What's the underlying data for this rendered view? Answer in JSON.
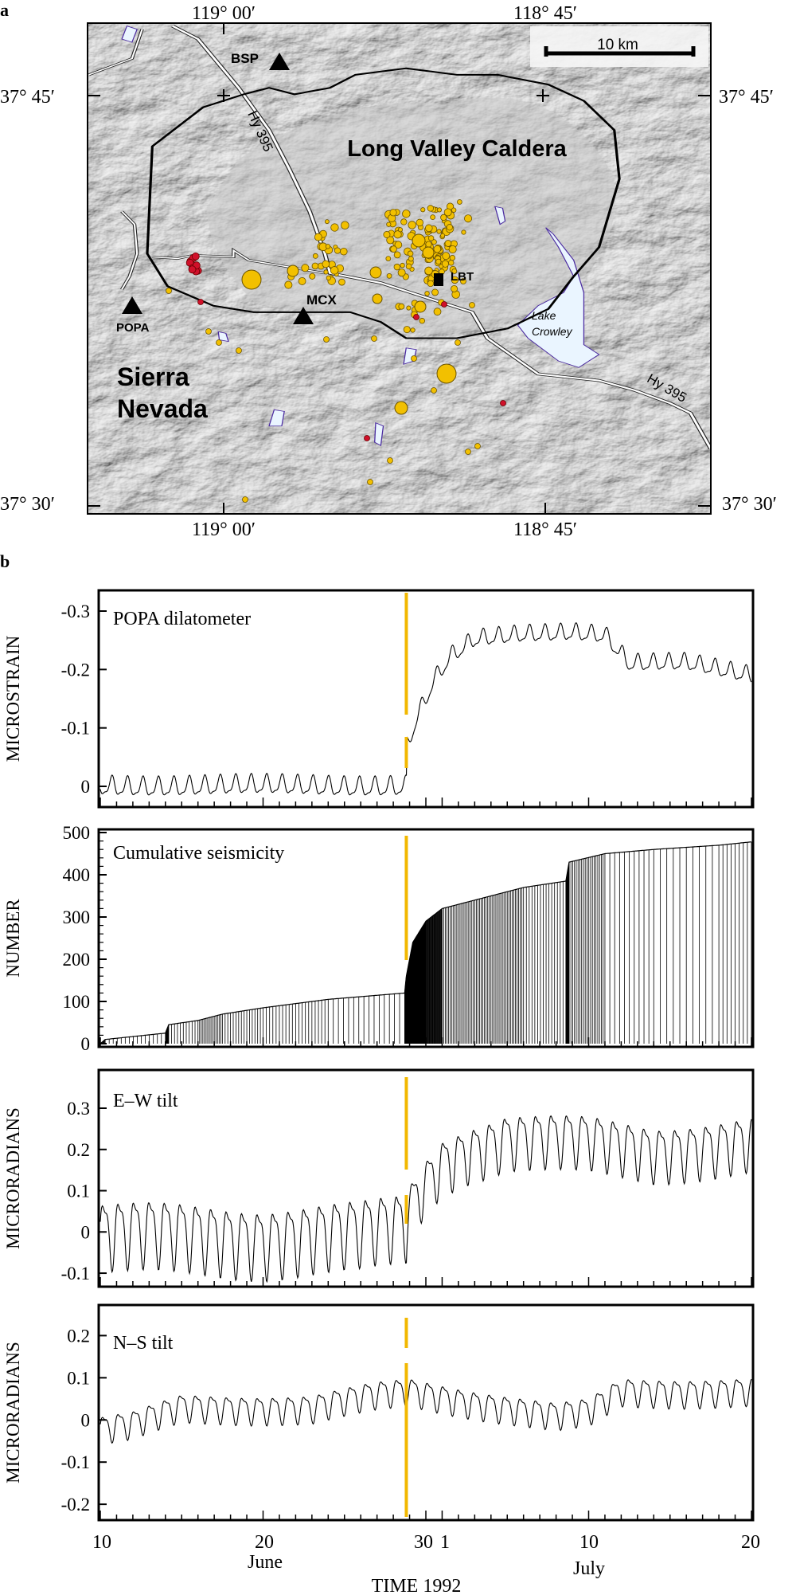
{
  "panel_a": {
    "label": "a",
    "lon_labels": [
      "119° 00′",
      "118° 45′"
    ],
    "lat_labels": [
      "37° 45′",
      "37° 30′"
    ],
    "scale_bar": "10 km",
    "title": "Long Valley Caldera",
    "region": [
      "Sierra",
      "Nevada"
    ],
    "lake": [
      "Lake",
      "Crowley"
    ],
    "highway": "Hy 395",
    "stations": [
      "BSP",
      "MCX",
      "POPA",
      "LBT"
    ],
    "colors": {
      "earthquake": "#f2c000",
      "earthquake_red": "#d0102a",
      "lake": "#e8f4ff",
      "lake_edge": "#4a2aa0"
    }
  },
  "panel_b": {
    "label": "b",
    "xlabel": "TIME 1992",
    "x_tick_labels": [
      "10",
      "20",
      "30",
      "1",
      "10",
      "20"
    ],
    "month_labels": [
      "June",
      "July"
    ],
    "event_marker_color": "#f2b800"
  },
  "chart_data": [
    {
      "type": "line",
      "title": "POPA dilatometer",
      "ylabel": "MICROSTRAIN",
      "ylim": [
        0.03,
        -0.33
      ],
      "yticks": [
        "-0.3",
        "-0.2",
        "-0.1",
        "0"
      ],
      "ytick_values": [
        -0.3,
        -0.2,
        -0.1,
        0
      ],
      "x_unit": "days since 10 June 1992",
      "xlim": [
        0,
        40
      ],
      "event_day": 18.8,
      "trend": [
        [
          0,
          0
        ],
        [
          18.8,
          0
        ],
        [
          18.85,
          -0.07
        ],
        [
          19.5,
          -0.12
        ],
        [
          20.5,
          -0.18
        ],
        [
          21.5,
          -0.22
        ],
        [
          23,
          -0.25
        ],
        [
          26,
          -0.26
        ],
        [
          29,
          -0.265
        ],
        [
          31,
          -0.26
        ],
        [
          32.5,
          -0.21
        ],
        [
          36,
          -0.21
        ],
        [
          40,
          -0.19
        ]
      ],
      "tidal_amplitude": [
        0.015,
        0.013
      ]
    },
    {
      "type": "bar",
      "title": "Cumulative seismicity",
      "ylabel": "NUMBER",
      "ylim": [
        0,
        500
      ],
      "yticks": [
        "500",
        "400",
        "300",
        "200",
        "100",
        "0"
      ],
      "ytick_values": [
        500,
        400,
        300,
        200,
        100,
        0
      ],
      "xlim": [
        0,
        40
      ],
      "event_day": 18.8,
      "cumulative": [
        [
          0,
          0
        ],
        [
          0.3,
          10
        ],
        [
          4,
          25
        ],
        [
          4.2,
          45
        ],
        [
          6,
          55
        ],
        [
          7.5,
          70
        ],
        [
          10,
          85
        ],
        [
          14,
          105
        ],
        [
          18.7,
          120
        ],
        [
          18.8,
          160
        ],
        [
          19.2,
          240
        ],
        [
          20,
          290
        ],
        [
          21,
          320
        ],
        [
          23,
          340
        ],
        [
          26,
          370
        ],
        [
          28.6,
          385
        ],
        [
          28.8,
          430
        ],
        [
          31,
          450
        ],
        [
          34,
          460
        ],
        [
          38,
          470
        ],
        [
          40,
          478
        ]
      ]
    },
    {
      "type": "line",
      "title": "E–W tilt",
      "ylabel": "MICRORADIANS",
      "ylim": [
        -0.125,
        0.385
      ],
      "yticks": [
        "0.3",
        "0.2",
        "0.1",
        "0",
        "-0.1"
      ],
      "ytick_values": [
        0.3,
        0.2,
        0.1,
        0,
        -0.1
      ],
      "xlim": [
        0,
        40
      ],
      "event_day": 18.8,
      "trend": [
        [
          0,
          0
        ],
        [
          10,
          -0.01
        ],
        [
          16,
          0
        ],
        [
          18.8,
          0.02
        ],
        [
          18.9,
          0.05
        ],
        [
          20,
          0.12
        ],
        [
          21,
          0.17
        ],
        [
          22.5,
          0.2
        ],
        [
          25,
          0.23
        ],
        [
          30,
          0.22
        ],
        [
          34,
          0.2
        ],
        [
          40,
          0.22
        ]
      ],
      "tidal_amplitude": [
        0.075,
        0.06
      ]
    },
    {
      "type": "line",
      "title": "N–S tilt",
      "ylabel": "MICRORADIANS",
      "ylim": [
        -0.23,
        0.265
      ],
      "yticks": [
        "0.2",
        "0.1",
        "0",
        "-0.1",
        "-0.2"
      ],
      "ytick_values": [
        0.2,
        0.1,
        0,
        -0.1,
        -0.2
      ],
      "xlim": [
        0,
        40
      ],
      "event_day": 18.8,
      "trend": [
        [
          0,
          -0.02
        ],
        [
          2,
          -0.01
        ],
        [
          5,
          0.03
        ],
        [
          9,
          0.03
        ],
        [
          13,
          0.03
        ],
        [
          17,
          0.06
        ],
        [
          19,
          0.07
        ],
        [
          22,
          0.05
        ],
        [
          25,
          0.03
        ],
        [
          28,
          0.01
        ],
        [
          30,
          0.02
        ],
        [
          32,
          0.07
        ],
        [
          36,
          0.07
        ],
        [
          40,
          0.07
        ]
      ],
      "tidal_amplitude": [
        0.03,
        0.03
      ]
    }
  ]
}
